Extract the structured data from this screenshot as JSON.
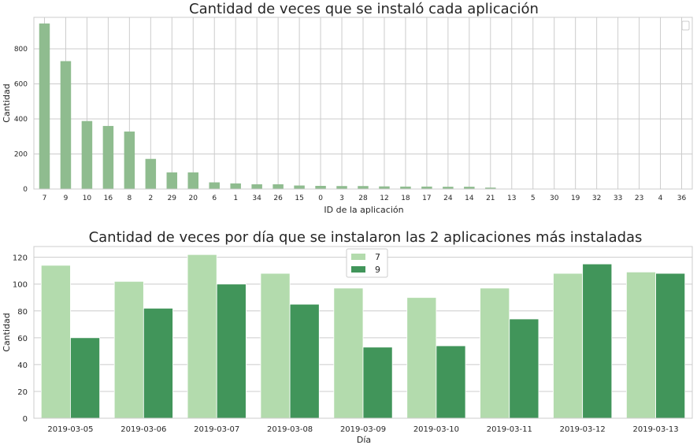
{
  "chart_data": [
    {
      "type": "bar",
      "title": "Cantidad de veces que se instaló cada aplicación",
      "xlabel": "ID de la aplicación",
      "ylabel": "Cantidad",
      "ylim": [
        0,
        980
      ],
      "yticks": [
        0,
        200,
        400,
        600,
        800
      ],
      "grid": true,
      "legend": "top-right (empty)",
      "color": "#8fbc8f",
      "categories": [
        "7",
        "9",
        "10",
        "16",
        "8",
        "2",
        "29",
        "20",
        "6",
        "1",
        "34",
        "26",
        "15",
        "0",
        "3",
        "28",
        "12",
        "18",
        "17",
        "24",
        "14",
        "21",
        "13",
        "5",
        "30",
        "19",
        "32",
        "33",
        "23",
        "4",
        "36"
      ],
      "values": [
        945,
        730,
        388,
        360,
        328,
        172,
        95,
        95,
        38,
        32,
        27,
        27,
        20,
        18,
        17,
        17,
        15,
        14,
        14,
        13,
        13,
        8,
        2,
        1,
        1,
        1,
        1,
        1,
        1,
        1,
        1
      ]
    },
    {
      "type": "bar",
      "title": "Cantidad de veces por día que se instalaron las 2 aplicaciones más instaladas",
      "xlabel": "Día",
      "ylabel": "Cantidad",
      "ylim": [
        0,
        128
      ],
      "yticks": [
        0,
        20,
        40,
        60,
        80,
        100,
        120
      ],
      "grid": true,
      "legend": "top-center",
      "categories": [
        "2019-03-05",
        "2019-03-06",
        "2019-03-07",
        "2019-03-08",
        "2019-03-09",
        "2019-03-10",
        "2019-03-11",
        "2019-03-12",
        "2019-03-13"
      ],
      "series": [
        {
          "name": "7",
          "color": "#b3dbad",
          "values": [
            114,
            102,
            122,
            108,
            97,
            90,
            97,
            108,
            109
          ]
        },
        {
          "name": "9",
          "color": "#41955a",
          "values": [
            60,
            82,
            100,
            85,
            53,
            54,
            74,
            115,
            108
          ]
        }
      ]
    }
  ]
}
